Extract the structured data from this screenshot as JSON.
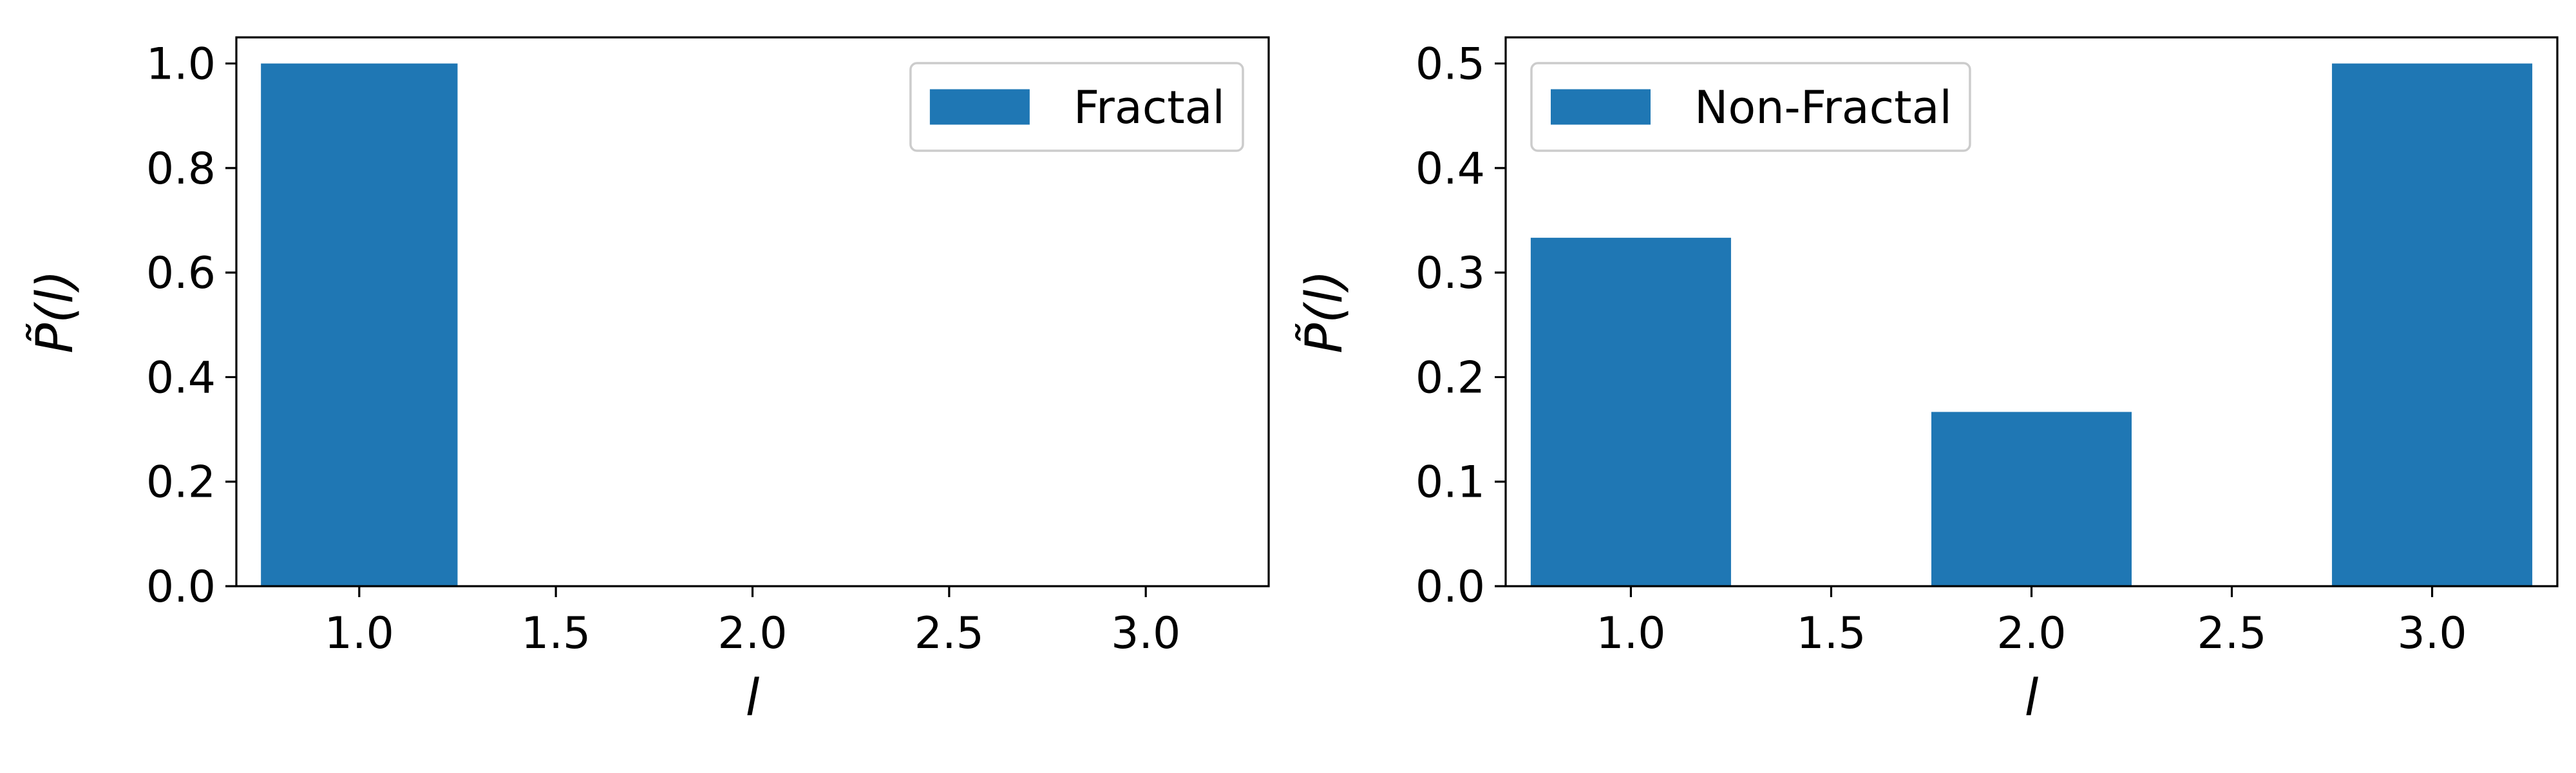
{
  "colors": {
    "bar": "#1f77b4"
  },
  "chart_data": [
    {
      "type": "bar",
      "categories": [
        1.0,
        2.0,
        3.0
      ],
      "bar_width": 0.5,
      "series": [
        {
          "name": "Fractal",
          "values": [
            1.0,
            0.0,
            0.0
          ]
        }
      ],
      "xlabel": "l",
      "ylabel": "P̃(l)",
      "xlim": [
        0.6875,
        3.3125
      ],
      "ylim": [
        0.0,
        1.05
      ],
      "xticks": [
        1.0,
        1.5,
        2.0,
        2.5,
        3.0
      ],
      "xtick_labels": [
        "1.0",
        "1.5",
        "2.0",
        "2.5",
        "3.0"
      ],
      "yticks": [
        0.0,
        0.2,
        0.4,
        0.6,
        0.8,
        1.0
      ],
      "ytick_labels": [
        "0.0",
        "0.2",
        "0.4",
        "0.6",
        "0.8",
        "1.0"
      ],
      "legend": {
        "placement": "upper right",
        "entries": [
          "Fractal"
        ]
      },
      "grid": false
    },
    {
      "type": "bar",
      "categories": [
        1.0,
        2.0,
        3.0
      ],
      "bar_width": 0.5,
      "series": [
        {
          "name": "Non-Fractal",
          "values": [
            0.3333,
            0.1667,
            0.5
          ]
        }
      ],
      "xlabel": "l",
      "ylabel": "P̃(l)",
      "xlim": [
        0.6875,
        3.3125
      ],
      "ylim": [
        0.0,
        0.525
      ],
      "xticks": [
        1.0,
        1.5,
        2.0,
        2.5,
        3.0
      ],
      "xtick_labels": [
        "1.0",
        "1.5",
        "2.0",
        "2.5",
        "3.0"
      ],
      "yticks": [
        0.0,
        0.1,
        0.2,
        0.3,
        0.4,
        0.5
      ],
      "ytick_labels": [
        "0.0",
        "0.1",
        "0.2",
        "0.3",
        "0.4",
        "0.5"
      ],
      "legend": {
        "placement": "upper left",
        "entries": [
          "Non-Fractal"
        ]
      },
      "grid": false
    }
  ]
}
